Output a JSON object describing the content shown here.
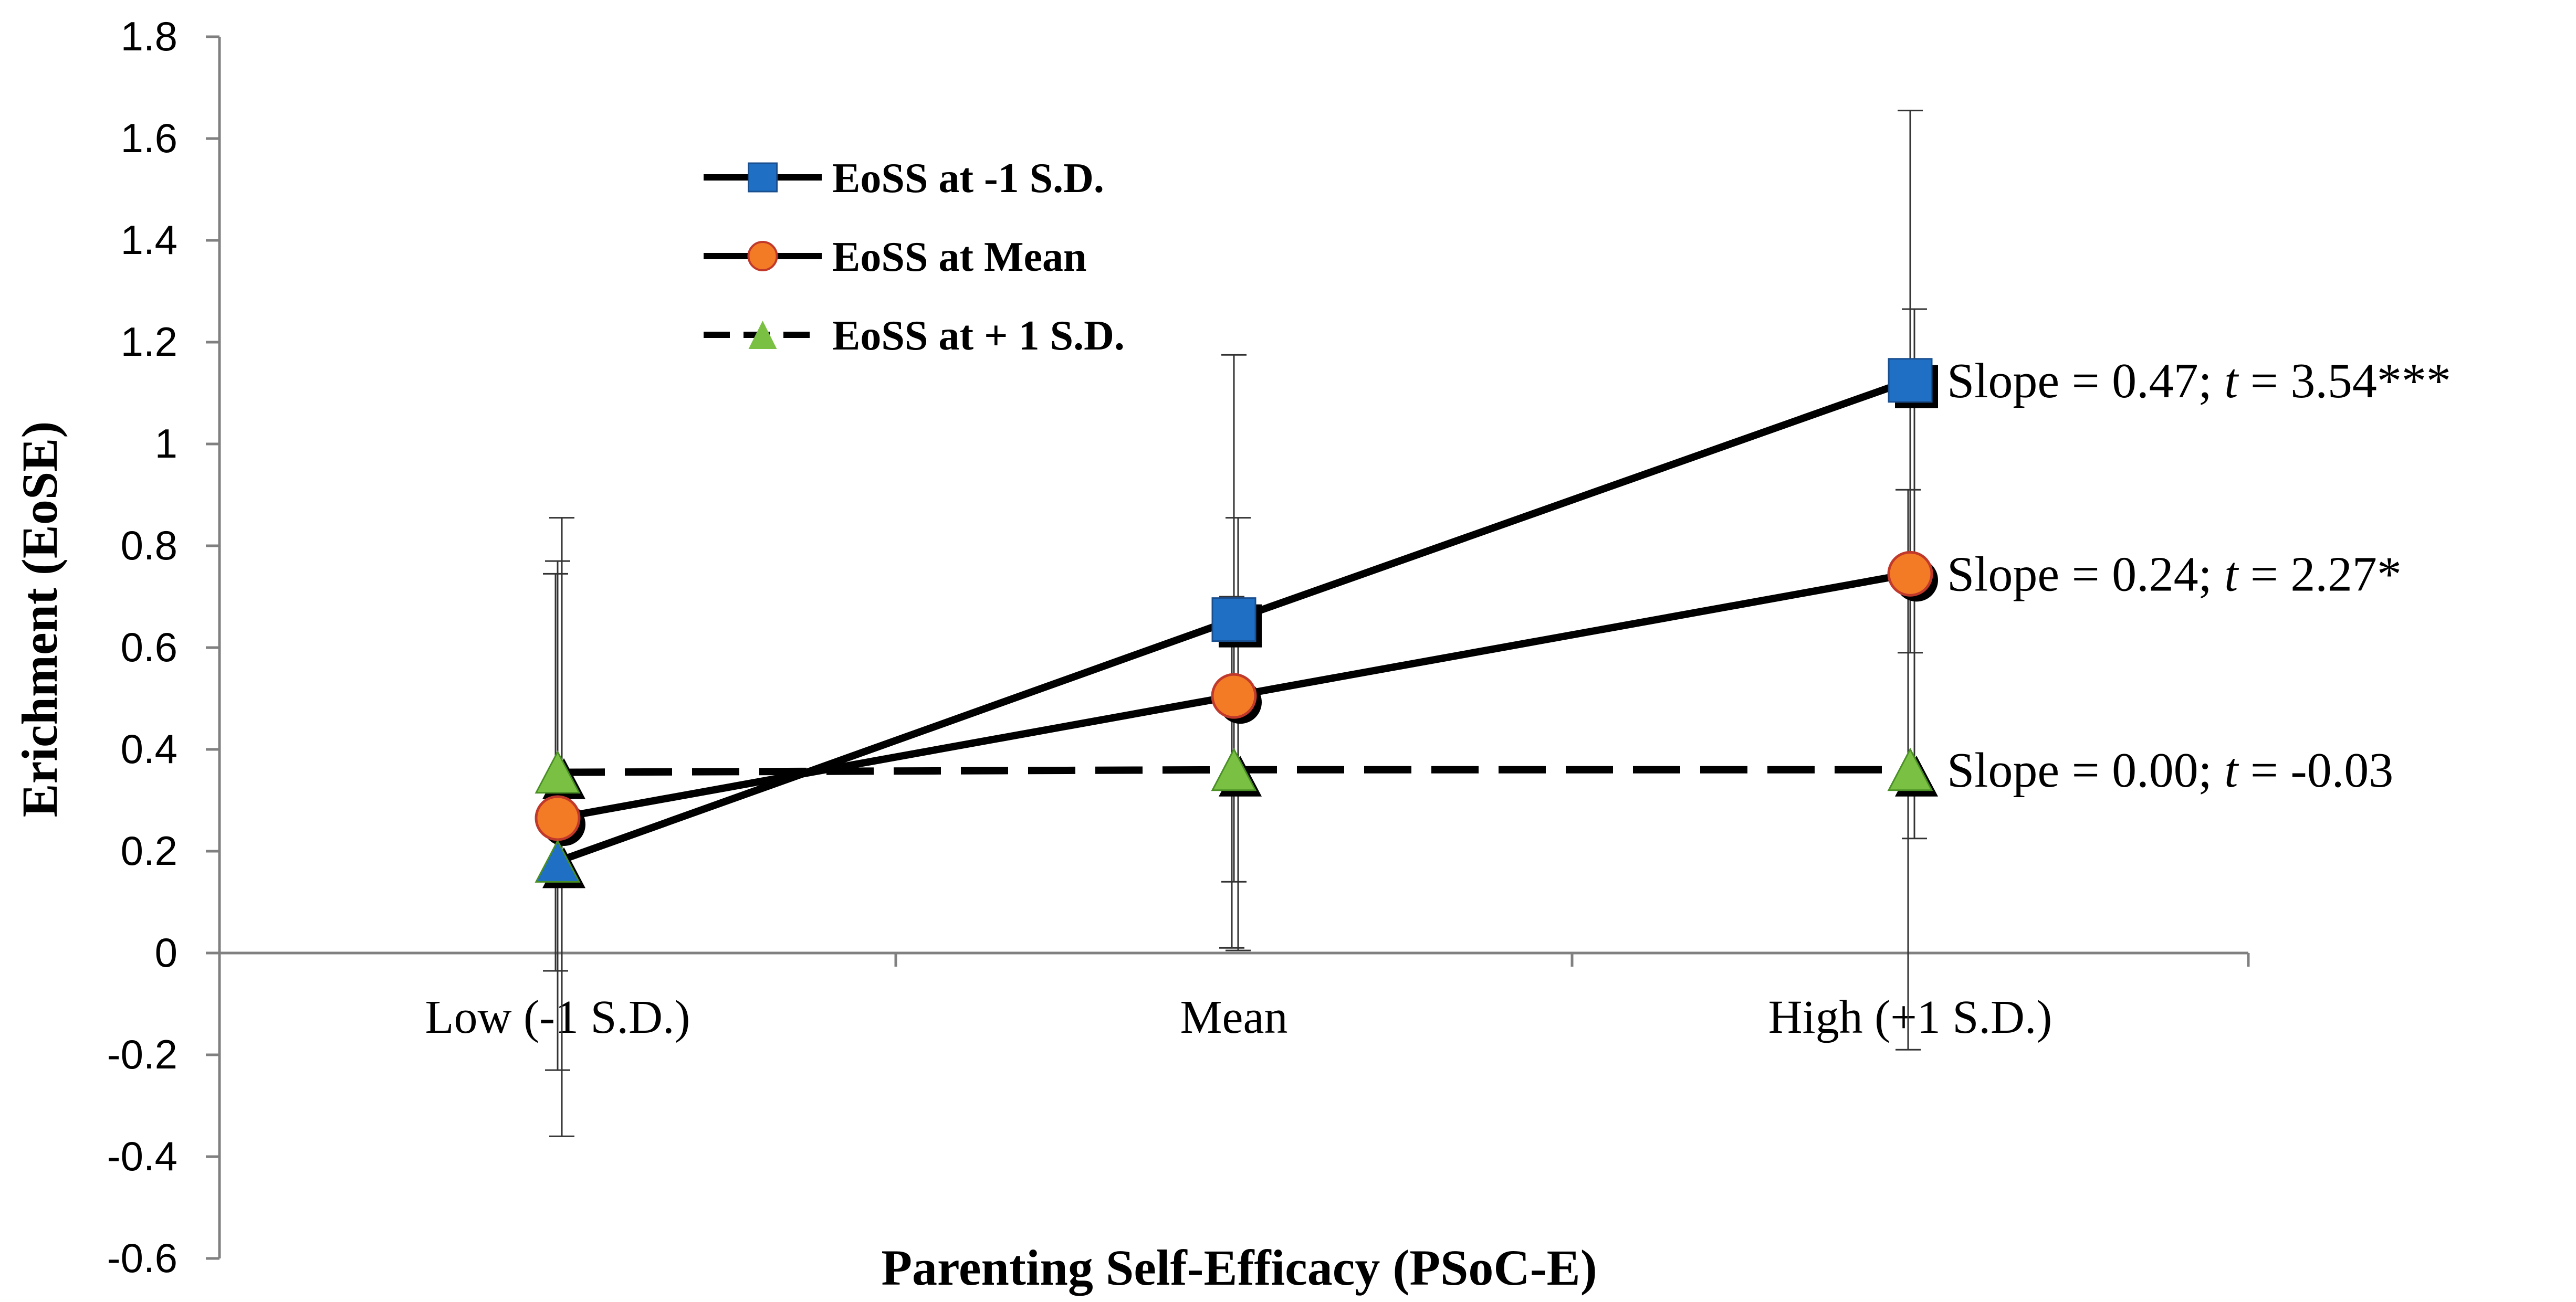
{
  "chart_data": {
    "type": "line",
    "title": "",
    "xlabel": "Parenting Self-Efficacy (PSoC-E)",
    "ylabel": "Erichment (EoSE)",
    "categories": [
      "Low (-1 S.D.)",
      "Mean",
      "High (+1 S.D.)"
    ],
    "ylim": [
      -0.6,
      1.8
    ],
    "yticks": [
      "1.8",
      "1.6",
      "1.4",
      "1.2",
      "1",
      "0.8",
      "0.6",
      "0.4",
      "0.2",
      "0",
      "-0.2",
      "-0.4",
      "-0.6"
    ],
    "legend_position": "top-left",
    "series": [
      {
        "name": "EoSS at -1 S.D.",
        "values": [
          0.18,
          0.655,
          1.125
        ],
        "marker": "square",
        "color": "#1f6fc5",
        "line": "solid",
        "errors": [
          [
            -0.23,
            0.77
          ],
          [
            0.14,
            1.175
          ],
          [
            0.59,
            1.655
          ]
        ],
        "annotation": {
          "pre": "Slope = 0.47; ",
          "t": "t",
          "post": " = 3.54***"
        }
      },
      {
        "name": "EoSS at Mean",
        "values": [
          0.265,
          0.505,
          0.745
        ],
        "marker": "circle",
        "color": "#f47b25",
        "line": "solid",
        "errors": [
          [
            -0.36,
            0.855
          ],
          [
            0.005,
            0.855
          ],
          [
            0.225,
            1.265
          ]
        ],
        "annotation": {
          "pre": "Slope = 0.24; ",
          "t": "t",
          "post": " = 2.27*"
        }
      },
      {
        "name": "EoSS at + 1 S.D.",
        "values": [
          0.355,
          0.36,
          0.36
        ],
        "marker": "triangle",
        "color": "#7ac143",
        "line": "dashed",
        "errors": [
          [
            -0.035,
            0.745
          ],
          [
            0.01,
            0.7
          ],
          [
            -0.19,
            0.91
          ]
        ],
        "annotation": {
          "pre": "Slope = 0.00; ",
          "t": "t",
          "post": " = -0.03"
        }
      }
    ]
  }
}
